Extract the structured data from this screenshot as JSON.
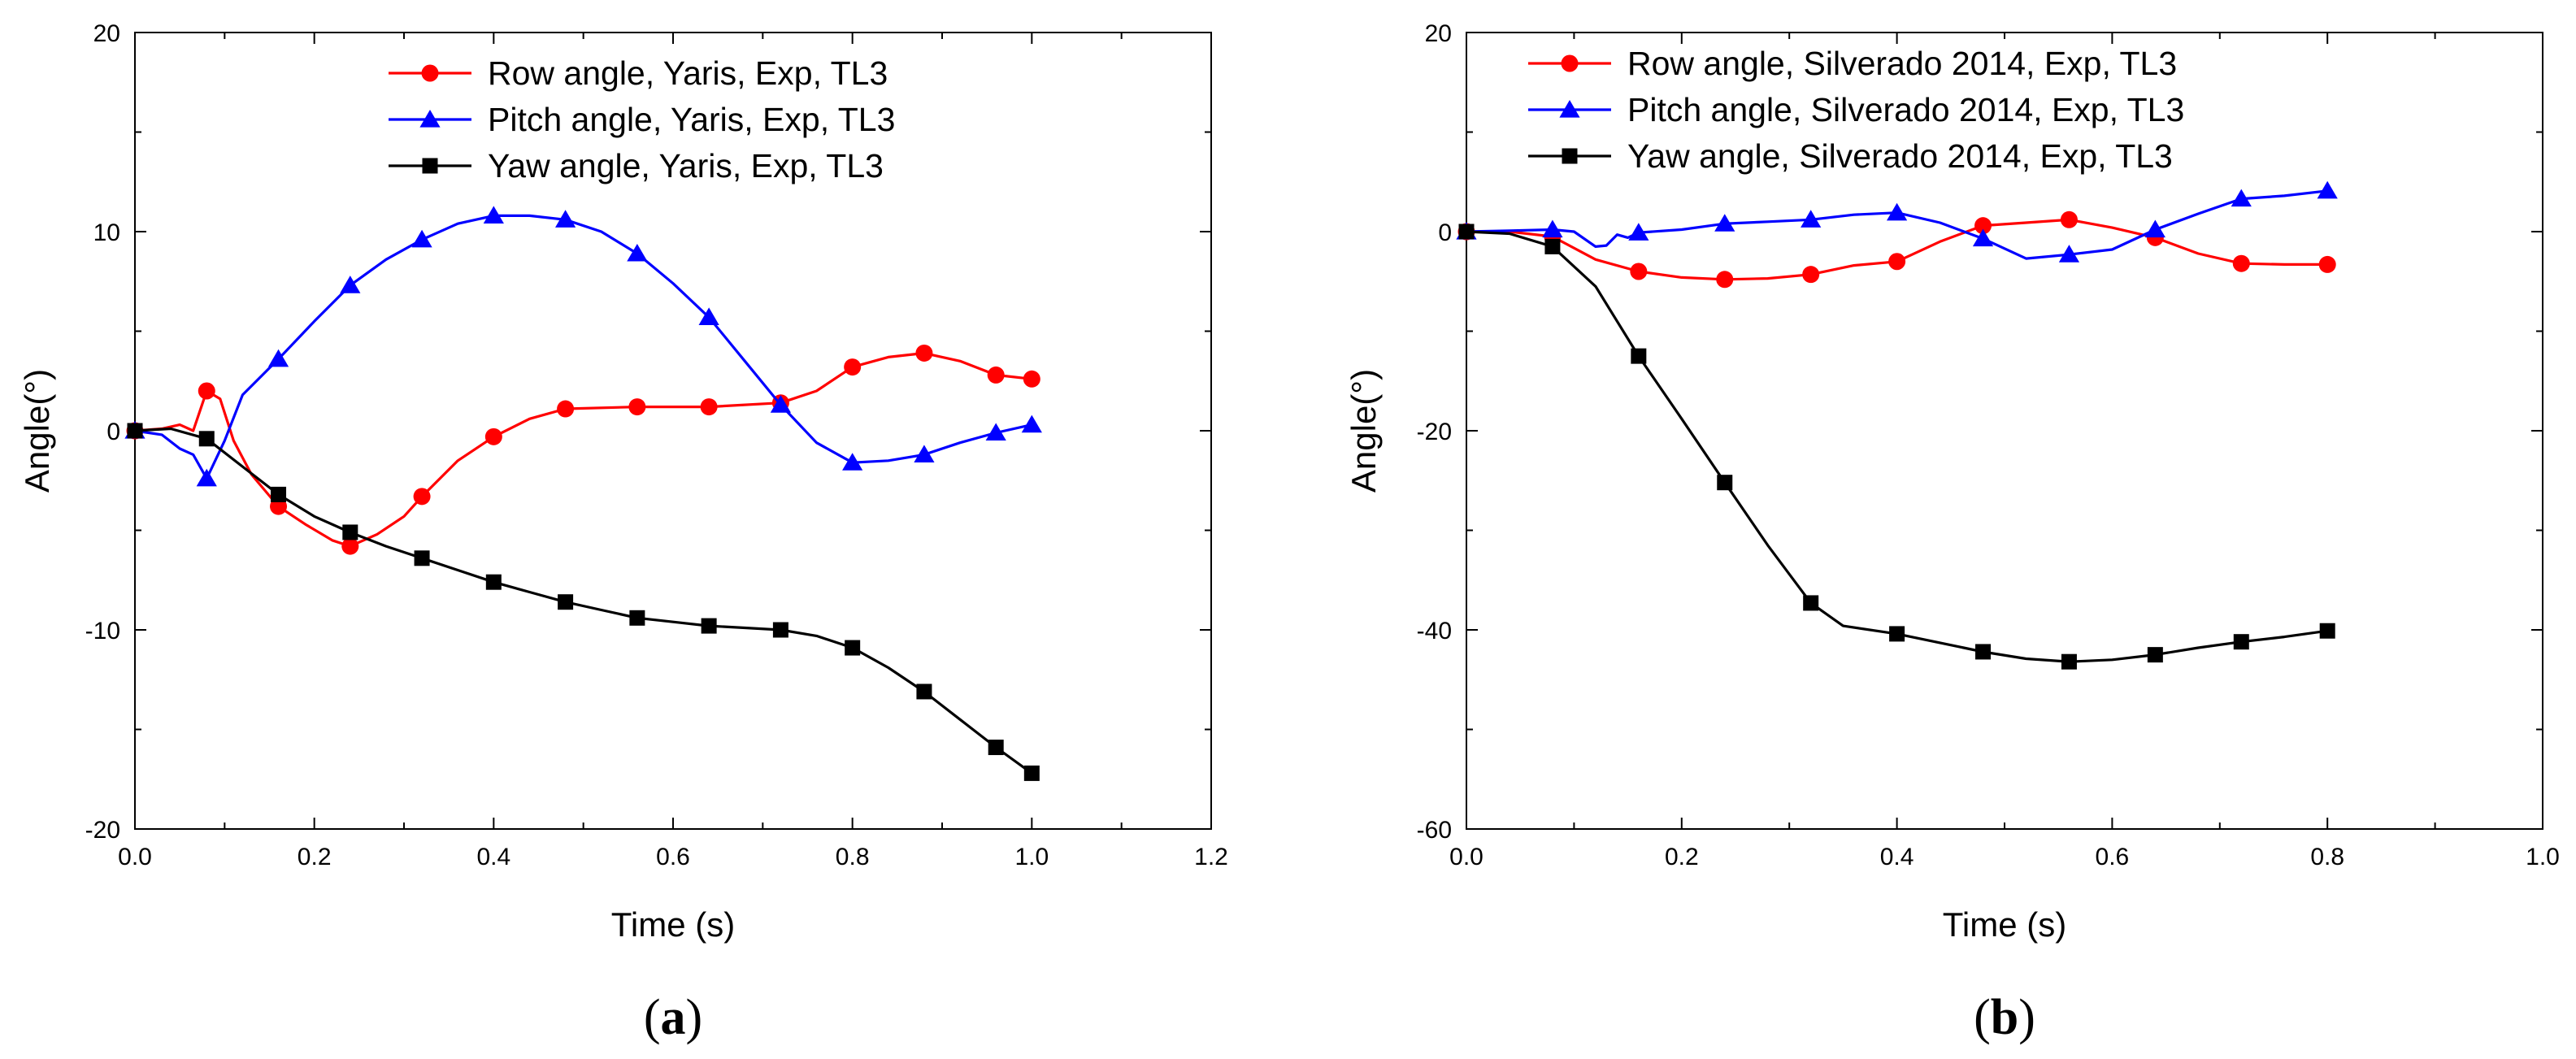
{
  "chart_data": [
    {
      "type": "line",
      "panel_label": "a",
      "title": "",
      "xlabel": "Time (s)",
      "ylabel": "Angle(°)",
      "xlim": [
        0.0,
        1.2
      ],
      "ylim": [
        -20,
        20
      ],
      "xticks": [
        "0.0",
        "0.2",
        "0.4",
        "0.6",
        "0.8",
        "1.0",
        "1.2"
      ],
      "yticks": [
        "-20",
        "-10",
        "0",
        "10",
        "20"
      ],
      "legend_position": "top-center",
      "grid": false,
      "series": [
        {
          "name": "Row angle, Yaris, Exp, TL3",
          "color": "#ff0000",
          "marker": "circle",
          "markers": [
            [
              0.0,
              0.0
            ],
            [
              0.08,
              2.0
            ],
            [
              0.16,
              -3.8
            ],
            [
              0.24,
              -5.8
            ],
            [
              0.32,
              -3.3
            ],
            [
              0.4,
              -0.3
            ],
            [
              0.48,
              1.1
            ],
            [
              0.56,
              1.2
            ],
            [
              0.64,
              1.2
            ],
            [
              0.72,
              1.4
            ],
            [
              0.8,
              3.2
            ],
            [
              0.88,
              3.9
            ],
            [
              0.96,
              2.8
            ],
            [
              1.0,
              2.6
            ]
          ],
          "line": [
            [
              0.0,
              0.0
            ],
            [
              0.03,
              0.1
            ],
            [
              0.05,
              0.3
            ],
            [
              0.065,
              0.0
            ],
            [
              0.08,
              2.0
            ],
            [
              0.095,
              1.6
            ],
            [
              0.11,
              -0.5
            ],
            [
              0.13,
              -2.2
            ],
            [
              0.16,
              -3.8
            ],
            [
              0.19,
              -4.7
            ],
            [
              0.22,
              -5.5
            ],
            [
              0.24,
              -5.8
            ],
            [
              0.27,
              -5.2
            ],
            [
              0.3,
              -4.3
            ],
            [
              0.32,
              -3.3
            ],
            [
              0.36,
              -1.5
            ],
            [
              0.4,
              -0.3
            ],
            [
              0.44,
              0.6
            ],
            [
              0.48,
              1.1
            ],
            [
              0.56,
              1.2
            ],
            [
              0.64,
              1.2
            ],
            [
              0.72,
              1.4
            ],
            [
              0.76,
              2.0
            ],
            [
              0.8,
              3.2
            ],
            [
              0.84,
              3.7
            ],
            [
              0.88,
              3.9
            ],
            [
              0.92,
              3.5
            ],
            [
              0.96,
              2.8
            ],
            [
              1.0,
              2.6
            ]
          ]
        },
        {
          "name": "Pitch angle, Yaris, Exp, TL3",
          "color": "#0000ff",
          "marker": "triangle",
          "markers": [
            [
              0.0,
              0.0
            ],
            [
              0.08,
              -2.4
            ],
            [
              0.16,
              3.6
            ],
            [
              0.24,
              7.3
            ],
            [
              0.32,
              9.6
            ],
            [
              0.4,
              10.8
            ],
            [
              0.48,
              10.6
            ],
            [
              0.56,
              8.9
            ],
            [
              0.64,
              5.7
            ],
            [
              0.72,
              1.3
            ],
            [
              0.8,
              -1.6
            ],
            [
              0.88,
              -1.2
            ],
            [
              0.96,
              -0.1
            ],
            [
              1.0,
              0.3
            ]
          ],
          "line": [
            [
              0.0,
              0.0
            ],
            [
              0.03,
              -0.2
            ],
            [
              0.05,
              -0.9
            ],
            [
              0.065,
              -1.2
            ],
            [
              0.08,
              -2.4
            ],
            [
              0.1,
              -0.5
            ],
            [
              0.12,
              1.8
            ],
            [
              0.16,
              3.6
            ],
            [
              0.2,
              5.5
            ],
            [
              0.24,
              7.3
            ],
            [
              0.28,
              8.6
            ],
            [
              0.32,
              9.6
            ],
            [
              0.36,
              10.4
            ],
            [
              0.4,
              10.8
            ],
            [
              0.44,
              10.8
            ],
            [
              0.48,
              10.6
            ],
            [
              0.52,
              10.0
            ],
            [
              0.56,
              8.9
            ],
            [
              0.6,
              7.4
            ],
            [
              0.64,
              5.7
            ],
            [
              0.68,
              3.5
            ],
            [
              0.72,
              1.3
            ],
            [
              0.76,
              -0.6
            ],
            [
              0.8,
              -1.6
            ],
            [
              0.84,
              -1.5
            ],
            [
              0.88,
              -1.2
            ],
            [
              0.92,
              -0.6
            ],
            [
              0.96,
              -0.1
            ],
            [
              1.0,
              0.3
            ]
          ]
        },
        {
          "name": "Yaw angle, Yaris, Exp, TL3",
          "color": "#000000",
          "marker": "square",
          "markers": [
            [
              0.0,
              0.0
            ],
            [
              0.08,
              -0.4
            ],
            [
              0.16,
              -3.2
            ],
            [
              0.24,
              -5.1
            ],
            [
              0.32,
              -6.4
            ],
            [
              0.4,
              -7.6
            ],
            [
              0.48,
              -8.6
            ],
            [
              0.56,
              -9.4
            ],
            [
              0.64,
              -9.8
            ],
            [
              0.72,
              -10.0
            ],
            [
              0.8,
              -10.9
            ],
            [
              0.88,
              -13.1
            ],
            [
              0.96,
              -15.9
            ],
            [
              1.0,
              -17.2
            ]
          ],
          "line": [
            [
              0.0,
              0.0
            ],
            [
              0.04,
              0.1
            ],
            [
              0.08,
              -0.4
            ],
            [
              0.12,
              -1.8
            ],
            [
              0.16,
              -3.2
            ],
            [
              0.2,
              -4.3
            ],
            [
              0.24,
              -5.1
            ],
            [
              0.28,
              -5.8
            ],
            [
              0.32,
              -6.4
            ],
            [
              0.36,
              -7.0
            ],
            [
              0.4,
              -7.6
            ],
            [
              0.44,
              -8.1
            ],
            [
              0.48,
              -8.6
            ],
            [
              0.52,
              -9.0
            ],
            [
              0.56,
              -9.4
            ],
            [
              0.6,
              -9.6
            ],
            [
              0.64,
              -9.8
            ],
            [
              0.68,
              -9.9
            ],
            [
              0.72,
              -10.0
            ],
            [
              0.76,
              -10.3
            ],
            [
              0.8,
              -10.9
            ],
            [
              0.84,
              -11.9
            ],
            [
              0.88,
              -13.1
            ],
            [
              0.92,
              -14.5
            ],
            [
              0.96,
              -15.9
            ],
            [
              1.0,
              -17.2
            ]
          ]
        }
      ]
    },
    {
      "type": "line",
      "panel_label": "b",
      "title": "",
      "xlabel": "Time (s)",
      "ylabel": "Angle(°)",
      "xlim": [
        0.0,
        1.0
      ],
      "ylim": [
        -60,
        20
      ],
      "xticks": [
        "0.0",
        "0.2",
        "0.4",
        "0.6",
        "0.8",
        "1.0"
      ],
      "yticks": [
        "-60",
        "-40",
        "-20",
        "0",
        "20"
      ],
      "legend_position": "top-left",
      "grid": false,
      "series": [
        {
          "name": "Row angle, Silverado 2014, Exp, TL3",
          "color": "#ff0000",
          "marker": "circle",
          "markers": [
            [
              0.0,
              0.0
            ],
            [
              0.08,
              -0.5
            ],
            [
              0.16,
              -4.0
            ],
            [
              0.24,
              -4.8
            ],
            [
              0.32,
              -4.3
            ],
            [
              0.4,
              -3.0
            ],
            [
              0.48,
              0.6
            ],
            [
              0.56,
              1.2
            ],
            [
              0.64,
              -0.6
            ],
            [
              0.72,
              -3.2
            ],
            [
              0.8,
              -3.3
            ]
          ],
          "line": [
            [
              0.0,
              0.0
            ],
            [
              0.04,
              0.0
            ],
            [
              0.08,
              -0.5
            ],
            [
              0.12,
              -2.8
            ],
            [
              0.16,
              -4.0
            ],
            [
              0.2,
              -4.6
            ],
            [
              0.24,
              -4.8
            ],
            [
              0.28,
              -4.7
            ],
            [
              0.32,
              -4.3
            ],
            [
              0.36,
              -3.4
            ],
            [
              0.4,
              -3.0
            ],
            [
              0.44,
              -1.0
            ],
            [
              0.48,
              0.6
            ],
            [
              0.52,
              0.9
            ],
            [
              0.56,
              1.2
            ],
            [
              0.6,
              0.4
            ],
            [
              0.64,
              -0.6
            ],
            [
              0.68,
              -2.2
            ],
            [
              0.72,
              -3.2
            ],
            [
              0.76,
              -3.3
            ],
            [
              0.8,
              -3.3
            ]
          ]
        },
        {
          "name": "Pitch angle, Silverado 2014, Exp, TL3",
          "color": "#0000ff",
          "marker": "triangle",
          "markers": [
            [
              0.0,
              0.0
            ],
            [
              0.08,
              0.2
            ],
            [
              0.16,
              -0.1
            ],
            [
              0.24,
              0.8
            ],
            [
              0.32,
              1.2
            ],
            [
              0.4,
              1.9
            ],
            [
              0.48,
              -0.7
            ],
            [
              0.56,
              -2.3
            ],
            [
              0.64,
              0.2
            ],
            [
              0.72,
              3.3
            ],
            [
              0.8,
              4.1
            ]
          ],
          "line": [
            [
              0.0,
              0.0
            ],
            [
              0.04,
              0.1
            ],
            [
              0.08,
              0.2
            ],
            [
              0.1,
              0.0
            ],
            [
              0.12,
              -1.5
            ],
            [
              0.13,
              -1.4
            ],
            [
              0.14,
              -0.3
            ],
            [
              0.15,
              -0.6
            ],
            [
              0.16,
              -0.1
            ],
            [
              0.2,
              0.2
            ],
            [
              0.24,
              0.8
            ],
            [
              0.28,
              1.0
            ],
            [
              0.32,
              1.2
            ],
            [
              0.36,
              1.7
            ],
            [
              0.4,
              1.9
            ],
            [
              0.44,
              0.9
            ],
            [
              0.48,
              -0.7
            ],
            [
              0.52,
              -2.7
            ],
            [
              0.56,
              -2.3
            ],
            [
              0.6,
              -1.8
            ],
            [
              0.64,
              0.2
            ],
            [
              0.68,
              1.8
            ],
            [
              0.72,
              3.3
            ],
            [
              0.76,
              3.6
            ],
            [
              0.8,
              4.1
            ]
          ]
        },
        {
          "name": "Yaw angle, Silverado 2014, Exp, TL3",
          "color": "#000000",
          "marker": "square",
          "markers": [
            [
              0.0,
              0.0
            ],
            [
              0.08,
              -1.5
            ],
            [
              0.16,
              -12.5
            ],
            [
              0.24,
              -25.2
            ],
            [
              0.32,
              -37.3
            ],
            [
              0.4,
              -40.4
            ],
            [
              0.48,
              -42.2
            ],
            [
              0.56,
              -43.2
            ],
            [
              0.64,
              -42.5
            ],
            [
              0.72,
              -41.2
            ],
            [
              0.8,
              -40.1
            ]
          ],
          "line": [
            [
              0.0,
              0.0
            ],
            [
              0.04,
              -0.2
            ],
            [
              0.08,
              -1.5
            ],
            [
              0.12,
              -5.5
            ],
            [
              0.16,
              -12.5
            ],
            [
              0.2,
              -18.8
            ],
            [
              0.24,
              -25.2
            ],
            [
              0.28,
              -31.5
            ],
            [
              0.32,
              -37.3
            ],
            [
              0.35,
              -39.6
            ],
            [
              0.4,
              -40.4
            ],
            [
              0.44,
              -41.3
            ],
            [
              0.48,
              -42.2
            ],
            [
              0.52,
              -42.9
            ],
            [
              0.56,
              -43.2
            ],
            [
              0.6,
              -43.0
            ],
            [
              0.64,
              -42.5
            ],
            [
              0.68,
              -41.8
            ],
            [
              0.72,
              -41.2
            ],
            [
              0.76,
              -40.7
            ],
            [
              0.8,
              -40.1
            ]
          ]
        }
      ]
    }
  ]
}
